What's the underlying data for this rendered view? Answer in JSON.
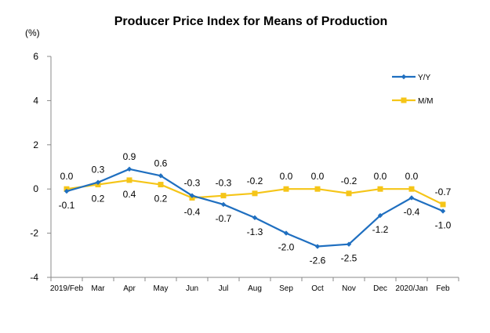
{
  "chart_data": {
    "type": "line",
    "title": "Producer Price Index for Means of Production",
    "unit_label": "(%)",
    "categories": [
      "2019/Feb",
      "Mar",
      "Apr",
      "May",
      "Jun",
      "Jul",
      "Aug",
      "Sep",
      "Oct",
      "Nov",
      "Dec",
      "2020/Jan",
      "Feb"
    ],
    "ylim": [
      -4,
      6
    ],
    "yticks": [
      -4,
      -2,
      0,
      2,
      4,
      6
    ],
    "grid": false,
    "legend_position": "top-right",
    "series": [
      {
        "name": "Y/Y",
        "color": "#1f6fc0",
        "marker": "diamond",
        "values": [
          -0.1,
          0.3,
          0.9,
          0.6,
          -0.3,
          -0.7,
          -1.3,
          -2.0,
          -2.6,
          -2.5,
          -1.2,
          -0.4,
          -1.0
        ],
        "labels": [
          "-0.1",
          "0.3",
          "0.9",
          "0.6",
          "-0.3",
          "-0.7",
          "-1.3",
          "-2.0",
          "-2.6",
          "-2.5",
          "-1.2",
          "-0.4",
          "-1.0"
        ]
      },
      {
        "name": "M/M",
        "color": "#f5c518",
        "marker": "square",
        "values": [
          0.0,
          0.2,
          0.4,
          0.2,
          -0.4,
          -0.3,
          -0.2,
          0.0,
          0.0,
          -0.2,
          0.0,
          0.0,
          -0.7
        ],
        "labels": [
          "0.0",
          "0.2",
          "0.4",
          "0.2",
          "-0.4",
          "-0.3",
          "-0.2",
          "0.0",
          "0.0",
          "-0.2",
          "0.0",
          "0.0",
          "-0.7"
        ]
      }
    ]
  }
}
